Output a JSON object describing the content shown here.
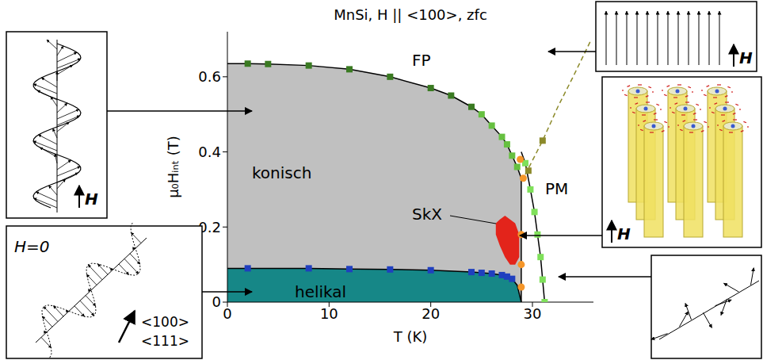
{
  "chart_data": {
    "type": "phase_diagram",
    "title": "MnSi, H || <100>, zfc",
    "x_label": "T (K)",
    "y_label": "μ₀Hᵢₙₜ (T)",
    "xlim": [
      0,
      36
    ],
    "xticks": [
      0,
      10,
      20,
      30
    ],
    "ylim": [
      0,
      0.72
    ],
    "yticks": [
      0,
      0.2,
      0.4,
      0.6
    ],
    "grid": false,
    "regions": [
      {
        "name": "konisch",
        "color": "#c0c0c0",
        "line_style": "solid",
        "x": [
          0,
          2,
          4,
          8,
          12,
          16,
          20,
          22,
          24,
          25,
          26,
          27,
          27.5,
          28,
          28.5,
          28.9,
          28.9
        ],
        "y": [
          0.635,
          0.635,
          0.634,
          0.63,
          0.62,
          0.6,
          0.57,
          0.55,
          0.52,
          0.5,
          0.47,
          0.44,
          0.42,
          0.39,
          0.36,
          0.33,
          0
        ]
      },
      {
        "name": "helikal",
        "color": "#168787",
        "line_style": "solid",
        "x": [
          0,
          2,
          8,
          12,
          16,
          20,
          24,
          25,
          26,
          27,
          27.5,
          28,
          28.5,
          28.9
        ],
        "y": [
          0.09,
          0.09,
          0.09,
          0.088,
          0.087,
          0.085,
          0.08,
          0.078,
          0.076,
          0.072,
          0.068,
          0.062,
          0.045,
          0
        ]
      },
      {
        "name": "SkX",
        "color": "#e3241b",
        "x": [
          26.4,
          26.8,
          27.3,
          27.8,
          28.3,
          28.7
        ],
        "low": [
          0.18,
          0.15,
          0.12,
          0.1,
          0.1,
          0.12
        ],
        "high": [
          0.21,
          0.22,
          0.23,
          0.22,
          0.21,
          0.18
        ]
      }
    ],
    "labels": [
      "FP",
      "PM"
    ],
    "boundaries": [
      {
        "color": "#000000",
        "line_style": "solid",
        "x": [
          28.9,
          29.3,
          29.8,
          30.2,
          30.5,
          30.8,
          31.0,
          31.2
        ],
        "y": [
          0.4,
          0.37,
          0.3,
          0.24,
          0.18,
          0.12,
          0.06,
          0
        ]
      },
      {
        "color": "#8c8a2a",
        "line_style": "dashed",
        "x": [
          29.3,
          31,
          32.5,
          34,
          35.8
        ],
        "y": [
          0.34,
          0.43,
          0.52,
          0.6,
          0.7
        ]
      }
    ],
    "points": [
      {
        "color": "#3a7a22",
        "marker": "square",
        "x": [
          2,
          4,
          8,
          12,
          16,
          20,
          22,
          24
        ],
        "y": [
          0.635,
          0.634,
          0.63,
          0.62,
          0.6,
          0.57,
          0.55,
          0.52
        ]
      },
      {
        "color": "#66c040",
        "marker": "square",
        "x": [
          25,
          26,
          27,
          27.5,
          28,
          28.5
        ],
        "y": [
          0.5,
          0.47,
          0.44,
          0.42,
          0.39,
          0.36
        ]
      },
      {
        "color": "#1f3fbf",
        "marker": "square",
        "x": [
          2,
          8,
          12,
          16,
          20,
          24,
          25,
          26,
          27,
          27.5,
          28
        ],
        "y": [
          0.09,
          0.09,
          0.088,
          0.087,
          0.085,
          0.08,
          0.078,
          0.076,
          0.072,
          0.068,
          0.062
        ]
      },
      {
        "color": "#7fe05a",
        "marker": "square",
        "x": [
          29.3,
          29.8,
          30.2,
          30.5,
          30.8,
          31.0,
          31.2
        ],
        "y": [
          0.37,
          0.3,
          0.24,
          0.18,
          0.12,
          0.06,
          0
        ]
      },
      {
        "color": "#8c8a2a",
        "marker": "square",
        "x": [
          29.6,
          31
        ],
        "y": [
          0.35,
          0.43
        ]
      },
      {
        "color": "#f5962a",
        "marker": "circle",
        "x": [
          28.8,
          29.1,
          28.9,
          28.9,
          28.9
        ],
        "y": [
          0.38,
          0.33,
          0.18,
          0.1,
          0.04
        ]
      }
    ],
    "insets": {
      "field": "H",
      "zero_field": "H=0",
      "directions": [
        "<100>",
        "<111>"
      ]
    }
  }
}
